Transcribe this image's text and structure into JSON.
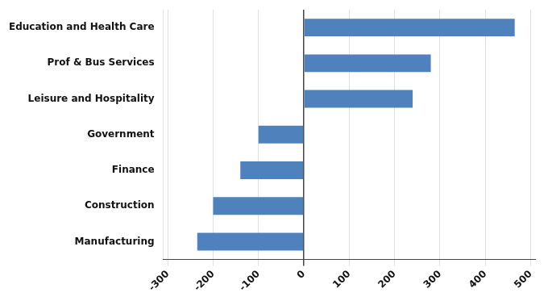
{
  "chart_data": {
    "type": "bar",
    "orientation": "horizontal",
    "categories": [
      "Education and Health Care",
      "Prof & Bus Services",
      "Leisure and Hospitality",
      "Government",
      "Finance",
      "Construction",
      "Manufacturing"
    ],
    "values": [
      465,
      280,
      240,
      -100,
      -140,
      -200,
      -235
    ],
    "color": "#4f81bd",
    "xlim": [
      -310,
      510
    ],
    "xticks": [
      -300,
      -200,
      -100,
      0,
      100,
      200,
      300,
      400,
      500
    ],
    "grid": true
  }
}
